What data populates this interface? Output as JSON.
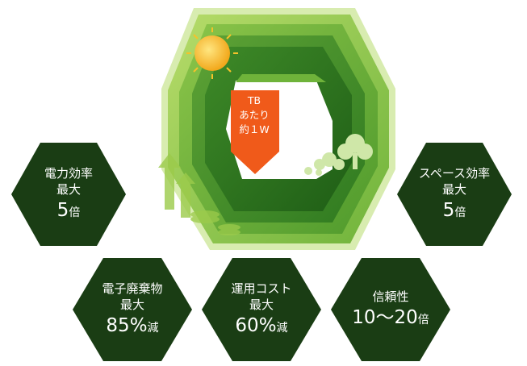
{
  "center": {
    "badge_lines": [
      "TB",
      "あたり",
      "約１W"
    ],
    "colors": {
      "arrow": "#f05a1a",
      "dark_green": "#1f4f14",
      "light_green": "#9ccb4b"
    }
  },
  "benefits": [
    {
      "line1": "電力効率",
      "line2": "最大",
      "value": "5",
      "unit": "倍"
    },
    {
      "line1": "スペース効率",
      "line2": "最大",
      "value": "5",
      "unit": "倍"
    },
    {
      "line1": "電子廃棄物",
      "line2": "最大",
      "value": "85%",
      "unit": "減"
    },
    {
      "line1": "運用コスト",
      "line2": "最大",
      "value": "60%",
      "unit": "減"
    },
    {
      "line1": "信頼性",
      "line2": "",
      "value": "10〜20",
      "unit": "倍"
    }
  ],
  "hex_color": "#1a3d14"
}
